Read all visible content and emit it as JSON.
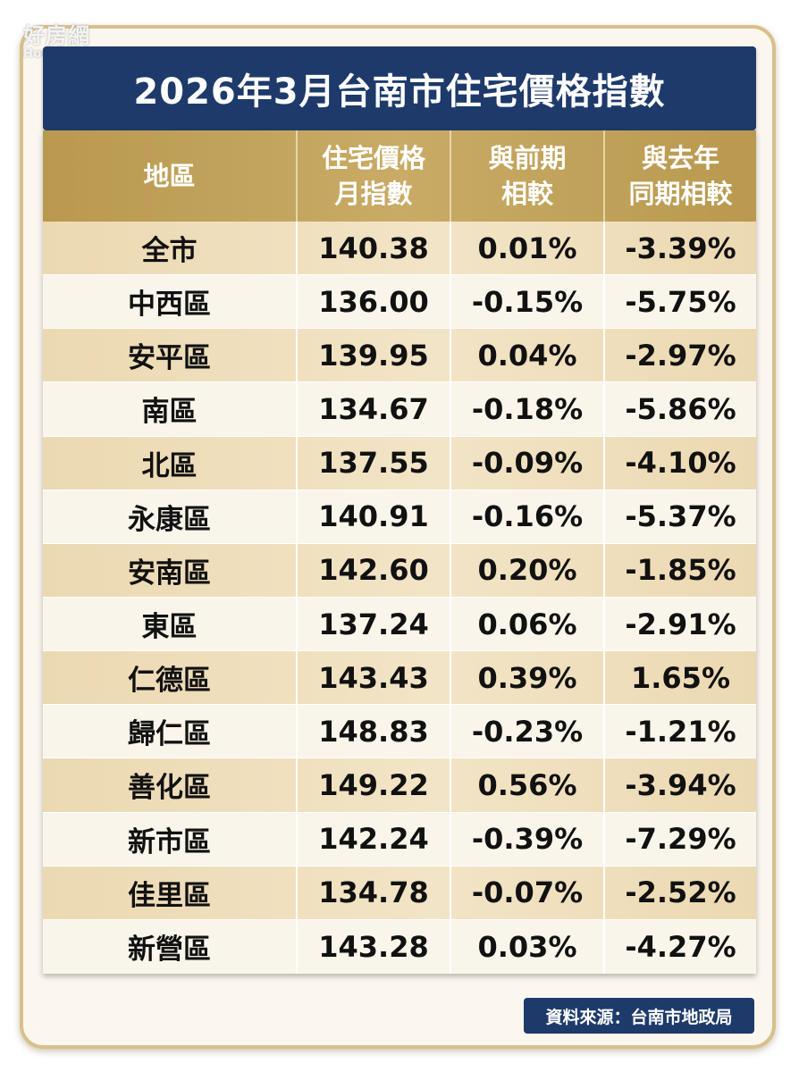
{
  "watermark": {
    "brand_cn": "好房網",
    "brand_en": "HouseFun | News"
  },
  "chart_data": {
    "type": "table",
    "title": "2026年3月台南市住宅價格指數",
    "columns": [
      "地區",
      "住宅價格\n月指數",
      "與前期\n相較",
      "與去年\n同期相較"
    ],
    "rows": [
      {
        "district": "全市",
        "index": "140.38",
        "mom": "0.01%",
        "yoy": "-3.39%"
      },
      {
        "district": "中西區",
        "index": "136.00",
        "mom": "-0.15%",
        "yoy": "-5.75%"
      },
      {
        "district": "安平區",
        "index": "139.95",
        "mom": "0.04%",
        "yoy": "-2.97%"
      },
      {
        "district": "南區",
        "index": "134.67",
        "mom": "-0.18%",
        "yoy": "-5.86%"
      },
      {
        "district": "北區",
        "index": "137.55",
        "mom": "-0.09%",
        "yoy": "-4.10%"
      },
      {
        "district": "永康區",
        "index": "140.91",
        "mom": "-0.16%",
        "yoy": "-5.37%"
      },
      {
        "district": "安南區",
        "index": "142.60",
        "mom": "0.20%",
        "yoy": "-1.85%"
      },
      {
        "district": "東區",
        "index": "137.24",
        "mom": "0.06%",
        "yoy": "-2.91%"
      },
      {
        "district": "仁德區",
        "index": "143.43",
        "mom": "0.39%",
        "yoy": "1.65%"
      },
      {
        "district": "歸仁區",
        "index": "148.83",
        "mom": "-0.23%",
        "yoy": "-1.21%"
      },
      {
        "district": "善化區",
        "index": "149.22",
        "mom": "0.56%",
        "yoy": "-3.94%"
      },
      {
        "district": "新市區",
        "index": "142.24",
        "mom": "-0.39%",
        "yoy": "-7.29%"
      },
      {
        "district": "佳里區",
        "index": "134.78",
        "mom": "-0.07%",
        "yoy": "-2.52%"
      },
      {
        "district": "新營區",
        "index": "143.28",
        "mom": "0.03%",
        "yoy": "-4.27%"
      }
    ],
    "source": "資料來源：台南市地政局"
  },
  "colors": {
    "title_bg": "#1d3a6a",
    "header_gold": "#c9ab66",
    "row_odd": "#f2e4c6",
    "row_even": "#faf5ea"
  }
}
